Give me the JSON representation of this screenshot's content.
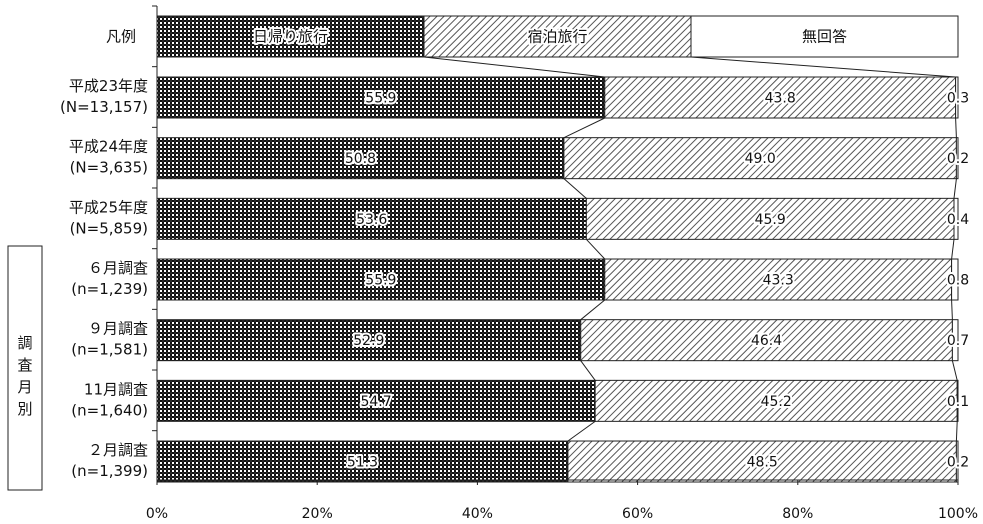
{
  "chart_data": {
    "type": "bar",
    "orientation": "horizontal",
    "stacked": true,
    "percent_scale": true,
    "legend": {
      "row_label": "凡例",
      "entries": [
        "日帰り旅行",
        "宿泊旅行",
        "無回答"
      ]
    },
    "categories": [
      [
        "平成23年度",
        "(N=13,157)"
      ],
      [
        "平成24年度",
        "(N=3,635)"
      ],
      [
        "平成25年度",
        "(N=5,859)"
      ],
      [
        "６月調査",
        "(n=1,239)"
      ],
      [
        "９月調査",
        "(n=1,581)"
      ],
      [
        "11月調査",
        "(n=1,640)"
      ],
      [
        "２月調査",
        "(n=1,399)"
      ]
    ],
    "series": [
      {
        "name": "日帰り旅行",
        "values": [
          55.9,
          50.8,
          53.6,
          55.9,
          52.9,
          54.7,
          51.3
        ],
        "color": "#1a1a1a",
        "pattern": "dense-checker"
      },
      {
        "name": "宿泊旅行",
        "values": [
          43.8,
          49.0,
          45.9,
          43.3,
          46.4,
          45.2,
          48.5
        ],
        "color": "#555555",
        "pattern": "diagonal-hatch"
      },
      {
        "name": "無回答",
        "values": [
          0.3,
          0.2,
          0.4,
          0.8,
          0.7,
          0.1,
          0.2
        ],
        "color": "#ffffff",
        "pattern": "none"
      }
    ],
    "data_labels": [
      [
        "55.9",
        "43.8",
        "0.3"
      ],
      [
        "50.8",
        "49.0",
        "0.2"
      ],
      [
        "53.6",
        "45.9",
        "0.4"
      ],
      [
        "55.9",
        "43.3",
        "0.8"
      ],
      [
        "52.9",
        "46.4",
        "0.7"
      ],
      [
        "54.7",
        "45.2",
        "0.1"
      ],
      [
        "51.3",
        "48.5",
        "0.2"
      ]
    ],
    "group_label": [
      "調",
      "査",
      "月",
      "別"
    ],
    "x_ticks": [
      "0%",
      "20%",
      "40%",
      "60%",
      "80%",
      "100%"
    ],
    "xlim": [
      0,
      100
    ],
    "connector_lines": true,
    "grid": false
  }
}
